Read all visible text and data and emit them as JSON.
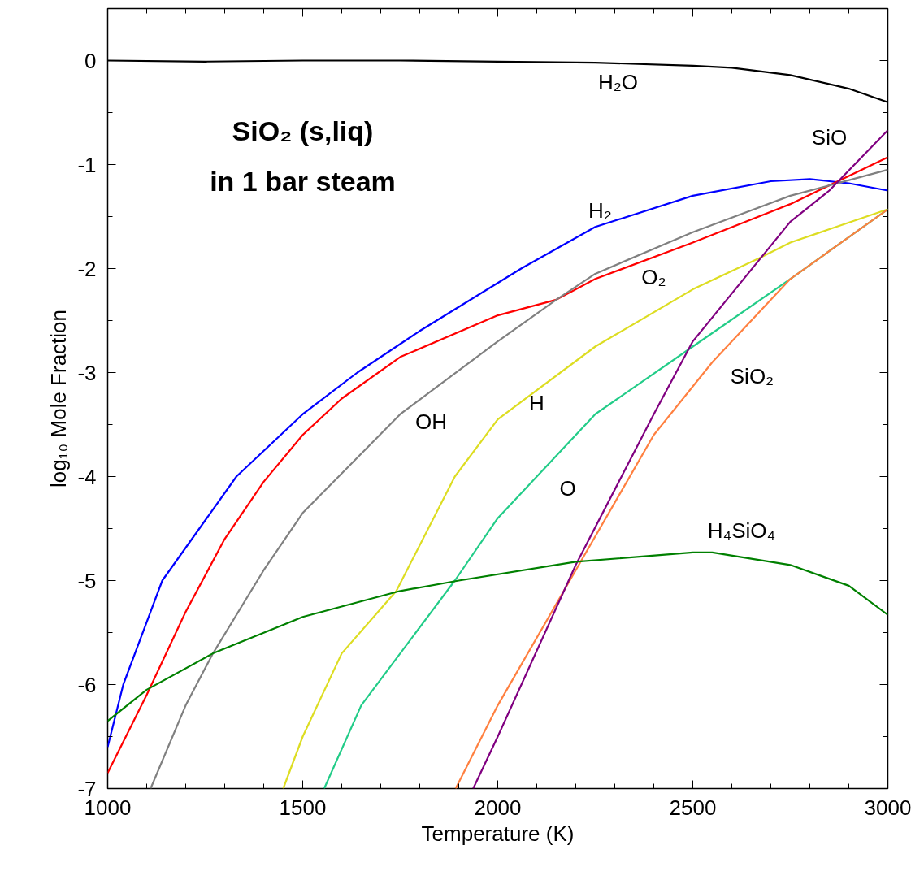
{
  "chart_data": {
    "type": "line",
    "title": "SiO₂ (s,liq)\nin 1 bar steam",
    "xlabel": "Temperature (K)",
    "ylabel": "log₁₀ Mole Fraction",
    "xlim": [
      1000,
      3000
    ],
    "ylim": [
      -7,
      0.5
    ],
    "xticks": [
      1000,
      1500,
      2000,
      2500,
      3000
    ],
    "yticks": [
      -7,
      -6,
      -5,
      -4,
      -3,
      -2,
      -1,
      0
    ],
    "grid": false,
    "series": [
      {
        "name": "H₂O",
        "color": "#000000",
        "x": [
          1000,
          1250,
          1500,
          1750,
          2000,
          2250,
          2500,
          2600,
          2750,
          2900,
          3000
        ],
        "values": [
          0,
          -0.01,
          0,
          0,
          -0.01,
          -0.02,
          -0.05,
          -0.07,
          -0.14,
          -0.27,
          -0.4
        ]
      },
      {
        "name": "H₂",
        "color": "#0000ff",
        "x": [
          1000,
          1040,
          1140,
          1330,
          1500,
          1640,
          1800,
          2060,
          2250,
          2500,
          2700,
          2800,
          2900,
          3000
        ],
        "values": [
          -6.6,
          -6.0,
          -5.0,
          -4.0,
          -3.4,
          -3.0,
          -2.6,
          -2.0,
          -1.6,
          -1.3,
          -1.16,
          -1.14,
          -1.18,
          -1.25
        ]
      },
      {
        "name": "O₂",
        "color": "#ff0000",
        "x": [
          1000,
          1100,
          1200,
          1300,
          1400,
          1500,
          1600,
          1750,
          2000,
          2150,
          2250,
          2500,
          2750,
          3000
        ],
        "values": [
          -6.85,
          -6.1,
          -5.3,
          -4.6,
          -4.05,
          -3.6,
          -3.25,
          -2.85,
          -2.45,
          -2.3,
          -2.1,
          -1.75,
          -1.38,
          -0.93
        ]
      },
      {
        "name": "OH",
        "color": "#808080",
        "x": [
          1110,
          1200,
          1270,
          1400,
          1500,
          1750,
          2000,
          2150,
          2250,
          2500,
          2750,
          3000
        ],
        "values": [
          -7,
          -6.2,
          -5.7,
          -4.9,
          -4.35,
          -3.4,
          -2.7,
          -2.3,
          -2.05,
          -1.65,
          -1.3,
          -1.05
        ]
      },
      {
        "name": "H",
        "color": "#dddd22",
        "x": [
          1450,
          1500,
          1600,
          1740,
          1890,
          2000,
          2250,
          2500,
          2670,
          2750,
          3000
        ],
        "values": [
          -7,
          -6.5,
          -5.7,
          -5.1,
          -4.0,
          -3.45,
          -2.75,
          -2.2,
          -1.9,
          -1.75,
          -1.43
        ]
      },
      {
        "name": "O",
        "color": "#22cc88",
        "x": [
          1555,
          1650,
          1890,
          2000,
          2250,
          2500,
          2750,
          3000
        ],
        "values": [
          -7,
          -6.2,
          -5.0,
          -4.4,
          -3.4,
          -2.75,
          -2.1,
          -1.43
        ]
      },
      {
        "name": "SiO₂",
        "color": "#ff8040",
        "x": [
          1892,
          2000,
          2200,
          2400,
          2550,
          2750,
          3000
        ],
        "values": [
          -7,
          -6.2,
          -4.9,
          -3.6,
          -2.9,
          -2.1,
          -1.43
        ]
      },
      {
        "name": "SiO",
        "color": "#800080",
        "x": [
          1937,
          2000,
          2200,
          2400,
          2500,
          2750,
          2850,
          3000
        ],
        "values": [
          -7,
          -6.5,
          -4.85,
          -3.4,
          -2.7,
          -1.55,
          -1.25,
          -0.67
        ]
      },
      {
        "name": "H₄SiO₄",
        "color": "#008000",
        "x": [
          1000,
          1100,
          1270,
          1500,
          1750,
          1900,
          2200,
          2500,
          2550,
          2750,
          2900,
          3000
        ],
        "values": [
          -6.35,
          -6.05,
          -5.7,
          -5.35,
          -5.1,
          -5.0,
          -4.82,
          -4.73,
          -4.73,
          -4.85,
          -5.05,
          -5.33
        ]
      }
    ]
  }
}
